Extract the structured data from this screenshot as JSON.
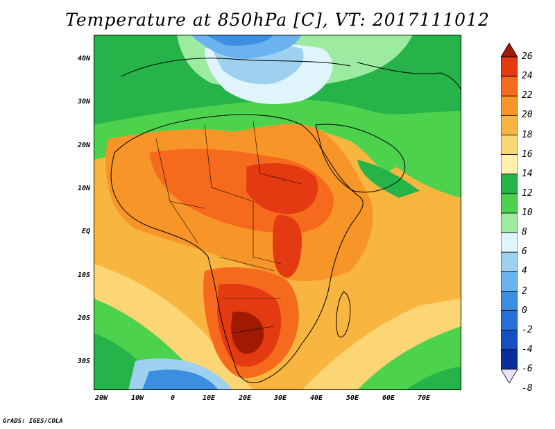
{
  "title": "Temperature at 850hPa [C], VT: 2017111012",
  "credit": "GrADS: IGES/COLA",
  "lat_labels": [
    "40N",
    "30N",
    "20N",
    "10N",
    "EQ",
    "10S",
    "20S",
    "30S"
  ],
  "lon_labels": [
    "20W",
    "10W",
    "0",
    "10E",
    "20E",
    "30E",
    "40E",
    "50E",
    "60E",
    "70E"
  ],
  "colorbar": {
    "labels": [
      "26",
      "24",
      "22",
      "20",
      "18",
      "16",
      "14",
      "12",
      "10",
      "8",
      "6",
      "4",
      "2",
      "0",
      "-2",
      "-4",
      "-6",
      "-8"
    ],
    "colors": [
      "#a01a00",
      "#e43a12",
      "#f56a1c",
      "#f79528",
      "#f8b641",
      "#fcd674",
      "#fff0b0",
      "#25b34a",
      "#4cd24c",
      "#9deba0",
      "#e0f5fb",
      "#9ed0f0",
      "#6ab3ee",
      "#3c8fe0",
      "#2670d8",
      "#1550c0",
      "#0b2f98",
      "#0a1a70"
    ]
  }
}
